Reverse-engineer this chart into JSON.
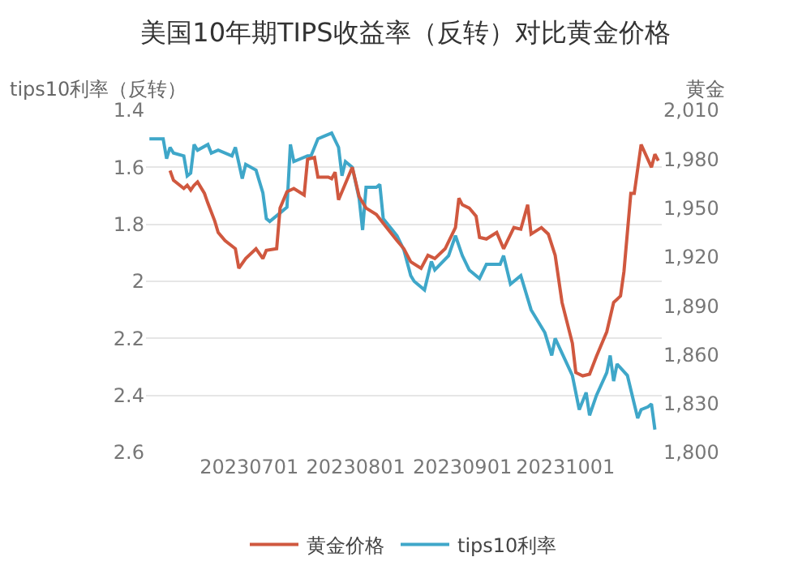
{
  "chart_data": {
    "type": "line",
    "title": "美国10年期TIPS收益率（反转）对比黄金价格",
    "ylabel": "tips10利率（反转）",
    "y2label": "黄金",
    "xlim": [
      "2023-06-01",
      "2023-10-29"
    ],
    "xticks": [
      {
        "value": "2023-07-01",
        "label": "20230701"
      },
      {
        "value": "2023-08-01",
        "label": "20230801"
      },
      {
        "value": "2023-09-01",
        "label": "20230901"
      },
      {
        "value": "2023-10-01",
        "label": "20231001"
      }
    ],
    "ylim": [
      2.6,
      1.4
    ],
    "yticks": [
      1.4,
      1.6,
      1.8,
      2,
      2.2,
      2.4,
      2.6
    ],
    "y2lim": [
      1800,
      2010
    ],
    "y2ticks": [
      {
        "value": 1800,
        "label": "1,800"
      },
      {
        "value": 1830,
        "label": "1,830"
      },
      {
        "value": 1860,
        "label": "1,860"
      },
      {
        "value": 1890,
        "label": "1,890"
      },
      {
        "value": 1920,
        "label": "1,920"
      },
      {
        "value": 1950,
        "label": "1,950"
      },
      {
        "value": 1980,
        "label": "1,980"
      },
      {
        "value": 2010,
        "label": "2,010"
      }
    ],
    "grid": "y",
    "legend": "bottom",
    "marker": "none",
    "line_style": "solid",
    "series": [
      {
        "name": "黄金价格",
        "color": "#d0583f",
        "axis": "y2",
        "x": [
          "2023-06-08",
          "2023-06-09",
          "2023-06-12",
          "2023-06-13",
          "2023-06-14",
          "2023-06-15",
          "2023-06-16",
          "2023-06-18",
          "2023-06-19",
          "2023-06-21",
          "2023-06-22",
          "2023-06-24",
          "2023-06-27",
          "2023-06-28",
          "2023-06-30",
          "2023-07-03",
          "2023-07-05",
          "2023-07-06",
          "2023-07-09",
          "2023-07-10",
          "2023-07-12",
          "2023-07-14",
          "2023-07-17",
          "2023-07-18",
          "2023-07-20",
          "2023-07-21",
          "2023-07-24",
          "2023-07-25",
          "2023-07-26",
          "2023-07-27",
          "2023-07-31",
          "2023-08-02",
          "2023-08-04",
          "2023-08-07",
          "2023-08-10",
          "2023-08-13",
          "2023-08-15",
          "2023-08-17",
          "2023-08-20",
          "2023-08-22",
          "2023-08-24",
          "2023-08-27",
          "2023-08-30",
          "2023-08-31",
          "2023-09-01",
          "2023-09-03",
          "2023-09-05",
          "2023-09-06",
          "2023-09-08",
          "2023-09-11",
          "2023-09-13",
          "2023-09-16",
          "2023-09-18",
          "2023-09-20",
          "2023-09-21",
          "2023-09-24",
          "2023-09-26",
          "2023-09-28",
          "2023-09-30",
          "2023-10-03",
          "2023-10-04",
          "2023-10-06",
          "2023-10-08",
          "2023-10-10",
          "2023-10-13",
          "2023-10-15",
          "2023-10-17",
          "2023-10-18",
          "2023-10-20",
          "2023-10-21",
          "2023-10-23",
          "2023-10-26",
          "2023-10-27",
          "2023-10-28"
        ],
        "values": [
          1973,
          1967,
          1962,
          1964,
          1961,
          1964,
          1966,
          1959,
          1953,
          1942,
          1935,
          1930,
          1925,
          1913,
          1919,
          1925,
          1919,
          1924,
          1925,
          1950,
          1960,
          1962,
          1958,
          1980,
          1981,
          1969,
          1969,
          1968,
          1972,
          1955,
          1975,
          1957,
          1950,
          1946,
          1938,
          1930,
          1925,
          1917,
          1913,
          1921,
          1919,
          1925,
          1938,
          1956,
          1952,
          1950,
          1945,
          1932,
          1931,
          1935,
          1925,
          1938,
          1937,
          1952,
          1934,
          1938,
          1934,
          1921,
          1892,
          1867,
          1849,
          1847,
          1848,
          1859,
          1874,
          1892,
          1896,
          1911,
          1959,
          1959,
          1989,
          1975,
          1983,
          1979
        ]
      },
      {
        "name": "tips10利率",
        "color": "#3fa7c9",
        "axis": "y",
        "x": [
          "2023-06-02",
          "2023-06-06",
          "2023-06-07",
          "2023-06-08",
          "2023-06-09",
          "2023-06-12",
          "2023-06-13",
          "2023-06-14",
          "2023-06-15",
          "2023-06-16",
          "2023-06-19",
          "2023-06-20",
          "2023-06-22",
          "2023-06-26",
          "2023-06-27",
          "2023-06-29",
          "2023-06-30",
          "2023-07-03",
          "2023-07-05",
          "2023-07-06",
          "2023-07-07",
          "2023-07-10",
          "2023-07-12",
          "2023-07-13",
          "2023-07-14",
          "2023-07-18",
          "2023-07-19",
          "2023-07-21",
          "2023-07-23",
          "2023-07-25",
          "2023-07-27",
          "2023-07-28",
          "2023-07-29",
          "2023-07-31",
          "2023-08-02",
          "2023-08-03",
          "2023-08-04",
          "2023-08-07",
          "2023-08-08",
          "2023-08-09",
          "2023-08-11",
          "2023-08-13",
          "2023-08-15",
          "2023-08-17",
          "2023-08-18",
          "2023-08-21",
          "2023-08-23",
          "2023-08-24",
          "2023-08-28",
          "2023-08-30",
          "2023-09-01",
          "2023-09-03",
          "2023-09-06",
          "2023-09-08",
          "2023-09-12",
          "2023-09-13",
          "2023-09-15",
          "2023-09-18",
          "2023-09-21",
          "2023-09-25",
          "2023-09-27",
          "2023-09-28",
          "2023-10-03",
          "2023-10-05",
          "2023-10-07",
          "2023-10-08",
          "2023-10-10",
          "2023-10-13",
          "2023-10-14",
          "2023-10-15",
          "2023-10-16",
          "2023-10-19",
          "2023-10-21",
          "2023-10-22",
          "2023-10-23",
          "2023-10-25",
          "2023-10-26",
          "2023-10-27"
        ],
        "values": [
          1.5,
          1.5,
          1.57,
          1.53,
          1.55,
          1.56,
          1.63,
          1.62,
          1.52,
          1.54,
          1.52,
          1.55,
          1.54,
          1.56,
          1.53,
          1.64,
          1.59,
          1.61,
          1.69,
          1.78,
          1.79,
          1.76,
          1.74,
          1.52,
          1.58,
          1.56,
          1.56,
          1.5,
          1.49,
          1.48,
          1.53,
          1.63,
          1.58,
          1.6,
          1.71,
          1.82,
          1.67,
          1.67,
          1.66,
          1.78,
          1.81,
          1.84,
          1.89,
          1.98,
          2.0,
          2.03,
          1.93,
          1.96,
          1.91,
          1.84,
          1.91,
          1.96,
          1.99,
          1.94,
          1.94,
          1.91,
          2.01,
          1.98,
          2.1,
          2.18,
          2.26,
          2.2,
          2.33,
          2.45,
          2.39,
          2.47,
          2.4,
          2.32,
          2.26,
          2.35,
          2.29,
          2.33,
          2.43,
          2.48,
          2.45,
          2.44,
          2.43,
          2.52
        ]
      }
    ]
  }
}
